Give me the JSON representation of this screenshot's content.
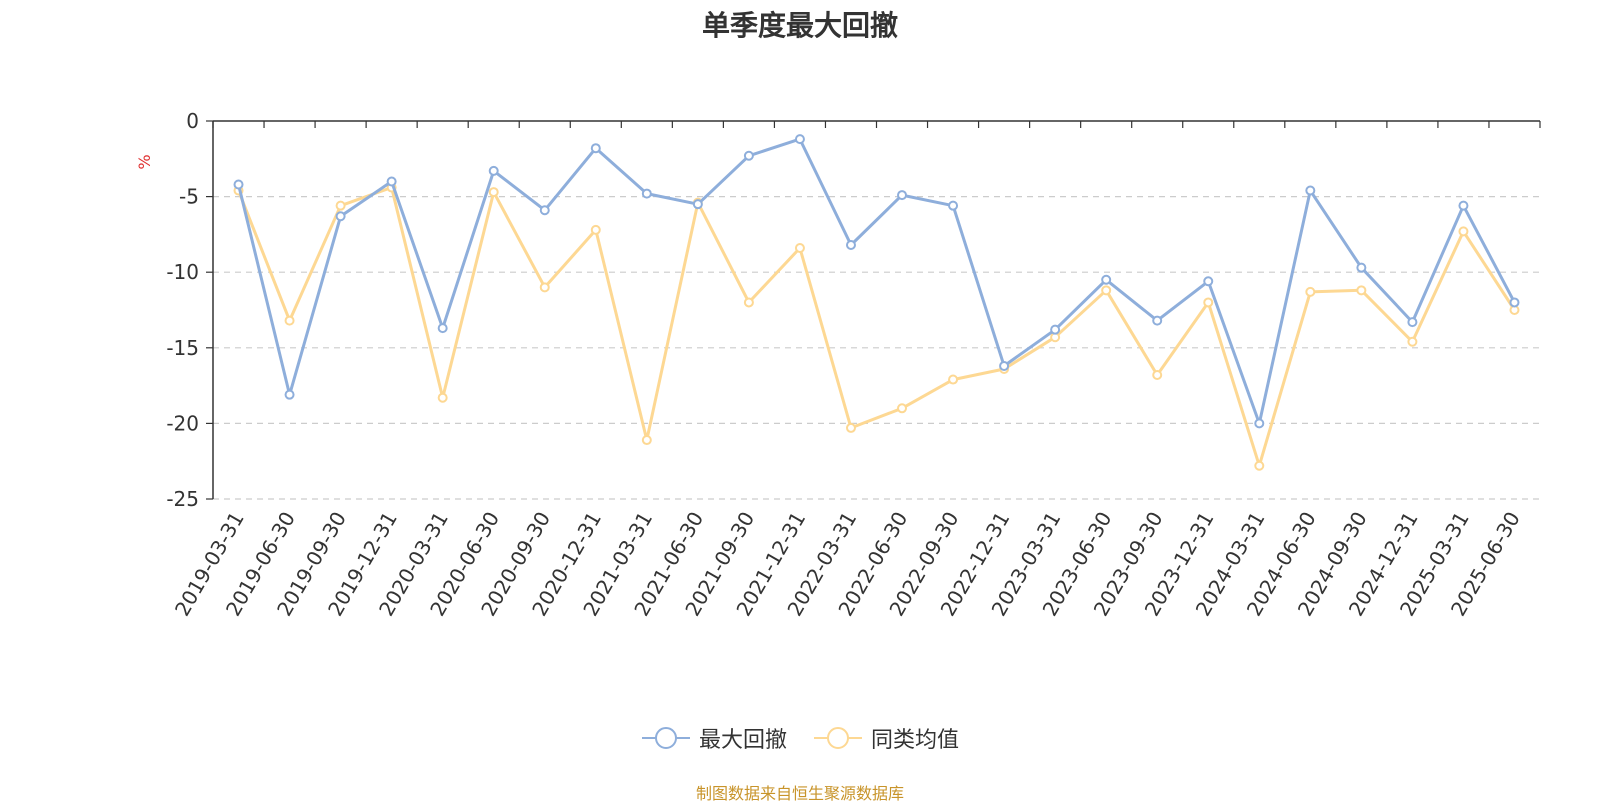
{
  "chart_data": {
    "type": "line",
    "title": "单季度最大回撤",
    "ylabel": "%",
    "xlabel": "",
    "ylim": [
      -25,
      0
    ],
    "yticks": [
      0,
      -5,
      -10,
      -15,
      -20,
      -25
    ],
    "grid": true,
    "legend_position": "bottom",
    "categories": [
      "2019-03-31",
      "2019-06-30",
      "2019-09-30",
      "2019-12-31",
      "2020-03-31",
      "2020-06-30",
      "2020-09-30",
      "2020-12-31",
      "2021-03-31",
      "2021-06-30",
      "2021-09-30",
      "2021-12-31",
      "2022-03-31",
      "2022-06-30",
      "2022-09-30",
      "2022-12-31",
      "2023-03-31",
      "2023-06-30",
      "2023-09-30",
      "2023-12-31",
      "2024-03-31",
      "2024-06-30",
      "2024-09-30",
      "2024-12-31",
      "2025-03-31",
      "2025-06-30"
    ],
    "series": [
      {
        "name": "最大回撤",
        "color": "#8eaedb",
        "values": [
          -4.2,
          -18.1,
          -6.3,
          -4.0,
          -13.7,
          -3.3,
          -5.9,
          -1.8,
          -4.8,
          -5.5,
          -2.3,
          -1.2,
          -8.2,
          -4.9,
          -5.6,
          -16.2,
          -13.8,
          -10.5,
          -13.2,
          -10.6,
          -20.0,
          -4.6,
          -9.7,
          -13.3,
          -5.6,
          -12.0
        ]
      },
      {
        "name": "同类均值",
        "color": "#fdd893",
        "values": [
          -4.6,
          -13.2,
          -5.6,
          -4.4,
          -18.3,
          -4.7,
          -11.0,
          -7.2,
          -21.1,
          -5.4,
          -12.0,
          -8.4,
          -20.3,
          -19.0,
          -17.1,
          -16.4,
          -14.3,
          -11.2,
          -16.8,
          -12.0,
          -22.8,
          -11.3,
          -11.2,
          -14.6,
          -7.3,
          -12.5
        ]
      }
    ],
    "source": "制图数据来自恒生聚源数据库"
  }
}
